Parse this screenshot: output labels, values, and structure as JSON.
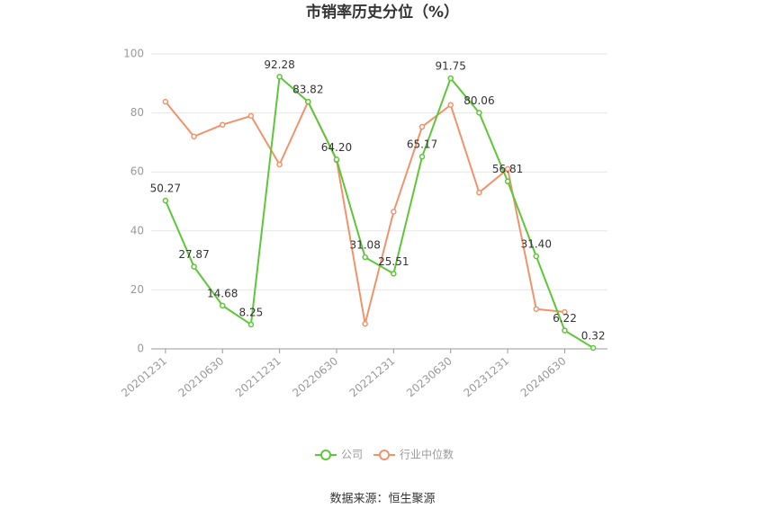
{
  "chart_data": {
    "type": "line",
    "title": "市销率历史分位（%）",
    "source": "数据来源：恒生聚源",
    "categories": [
      "20201231",
      null,
      "20210630",
      null,
      "20211231",
      null,
      "20220630",
      null,
      "20221231",
      null,
      "20230630",
      null,
      "20231231",
      null,
      "20240630",
      null
    ],
    "series": [
      {
        "name": "公司",
        "color": "#5ec639",
        "values": [
          50.27,
          27.87,
          14.68,
          8.25,
          92.28,
          83.82,
          64.2,
          31.08,
          25.51,
          65.17,
          91.75,
          80.06,
          56.81,
          31.4,
          6.22,
          0.32
        ],
        "value_labels": [
          "50.27",
          "27.87",
          "14.68",
          "8.25",
          "92.28",
          "83.82",
          "64.20",
          "31.08",
          "25.51",
          "65.17",
          "91.75",
          "80.06",
          "56.81",
          "31.40",
          "6.22",
          "0.32"
        ]
      },
      {
        "name": "行业中位数",
        "color": "#f0936b",
        "values": [
          83.8,
          72,
          76,
          79,
          62.5,
          83.8,
          64,
          8.5,
          46.5,
          75.3,
          82.7,
          53,
          61,
          13.5,
          12.5,
          null
        ]
      }
    ],
    "ylim": [
      0,
      100
    ],
    "yticks": [
      0,
      20,
      40,
      60,
      80,
      100
    ],
    "grid": true,
    "legend": "bottom"
  }
}
